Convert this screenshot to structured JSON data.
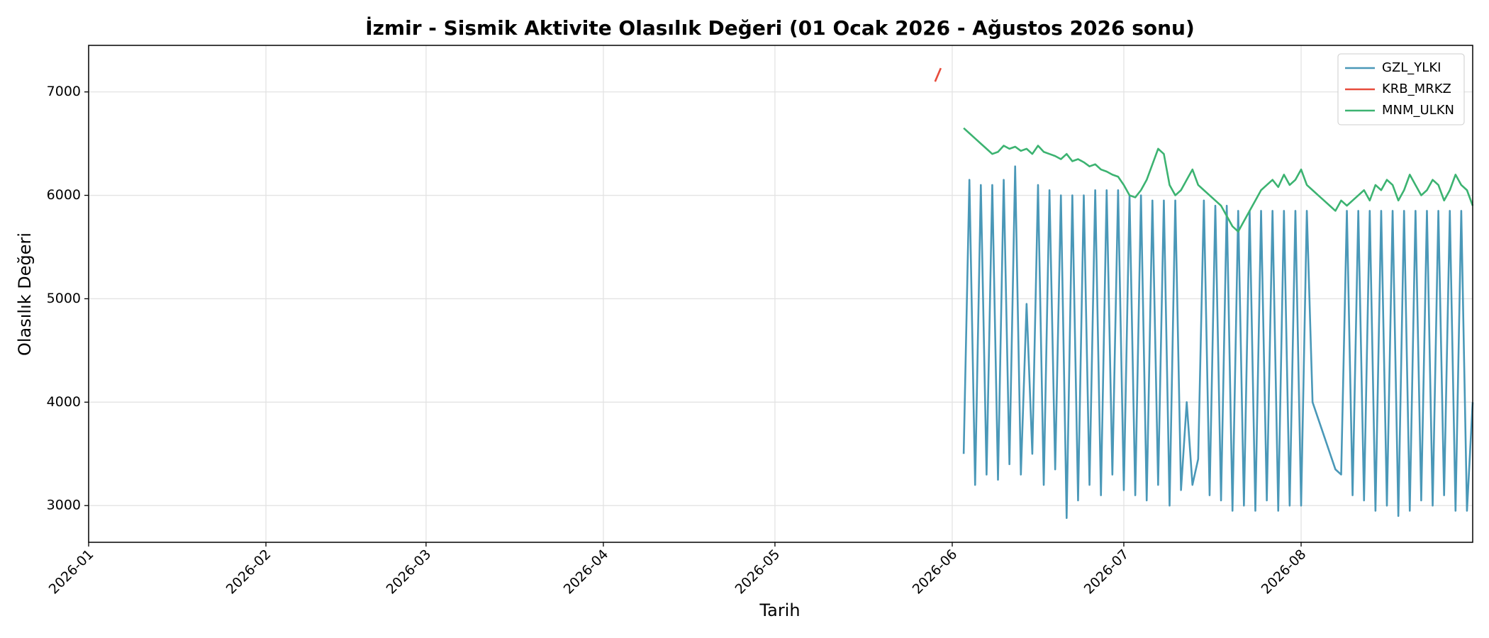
{
  "chart_data": {
    "type": "line",
    "title": "İzmir - Sismik Aktivite Olasılık Değeri (01 Ocak 2026 - Ağustos 2026 sonu)",
    "x_label": "Tarih",
    "y_label": "Olasılık Değeri",
    "xlim": [
      "2026-01-01",
      "2026-08-31"
    ],
    "xticks": [
      {
        "value": "2026-01-01",
        "label": "2026-01"
      },
      {
        "value": "2026-02-01",
        "label": "2026-02"
      },
      {
        "value": "2026-03-01",
        "label": "2026-03"
      },
      {
        "value": "2026-04-01",
        "label": "2026-04"
      },
      {
        "value": "2026-05-01",
        "label": "2026-05"
      },
      {
        "value": "2026-06-01",
        "label": "2026-06"
      },
      {
        "value": "2026-07-01",
        "label": "2026-07"
      },
      {
        "value": "2026-08-01",
        "label": "2026-08"
      }
    ],
    "ylim": [
      2645,
      7450
    ],
    "yticks": [
      3000,
      4000,
      5000,
      6000,
      7000
    ],
    "grid": true,
    "legend": "upper right",
    "series": [
      {
        "name": "GZL_YLKI",
        "color": "#4a98b8",
        "x": [
          "2026-06-03",
          "2026-06-04",
          "2026-06-05",
          "2026-06-06",
          "2026-06-07",
          "2026-06-08",
          "2026-06-09",
          "2026-06-10",
          "2026-06-11",
          "2026-06-12",
          "2026-06-13",
          "2026-06-14",
          "2026-06-15",
          "2026-06-16",
          "2026-06-17",
          "2026-06-18",
          "2026-06-19",
          "2026-06-20",
          "2026-06-21",
          "2026-06-22",
          "2026-06-23",
          "2026-06-24",
          "2026-06-25",
          "2026-06-26",
          "2026-06-27",
          "2026-06-28",
          "2026-06-29",
          "2026-06-30",
          "2026-07-01",
          "2026-07-02",
          "2026-07-03",
          "2026-07-04",
          "2026-07-05",
          "2026-07-06",
          "2026-07-07",
          "2026-07-08",
          "2026-07-09",
          "2026-07-10",
          "2026-07-11",
          "2026-07-12",
          "2026-07-13",
          "2026-07-14",
          "2026-07-15",
          "2026-07-16",
          "2026-07-17",
          "2026-07-18",
          "2026-07-19",
          "2026-07-20",
          "2026-07-21",
          "2026-07-22",
          "2026-07-23",
          "2026-07-24",
          "2026-07-25",
          "2026-07-26",
          "2026-07-27",
          "2026-07-28",
          "2026-07-29",
          "2026-07-30",
          "2026-07-31",
          "2026-08-01",
          "2026-08-02",
          "2026-08-03",
          "2026-08-07",
          "2026-08-08",
          "2026-08-09",
          "2026-08-10",
          "2026-08-11",
          "2026-08-12",
          "2026-08-13",
          "2026-08-14",
          "2026-08-15",
          "2026-08-16",
          "2026-08-17",
          "2026-08-18",
          "2026-08-19",
          "2026-08-20",
          "2026-08-21",
          "2026-08-22",
          "2026-08-23",
          "2026-08-24",
          "2026-08-25",
          "2026-08-26",
          "2026-08-27",
          "2026-08-28",
          "2026-08-29",
          "2026-08-30",
          "2026-08-31"
        ],
        "values": [
          3500,
          6150,
          3200,
          6100,
          3300,
          6100,
          3250,
          6150,
          3400,
          6280,
          3300,
          4950,
          3500,
          6100,
          3200,
          6050,
          3350,
          6000,
          2880,
          6000,
          3050,
          6000,
          3200,
          6050,
          3100,
          6050,
          3300,
          6050,
          3150,
          6000,
          3100,
          6000,
          3050,
          5950,
          3200,
          5950,
          3000,
          5950,
          3150,
          4000,
          3200,
          3450,
          5950,
          3100,
          5900,
          3050,
          5900,
          2950,
          5850,
          3000,
          5850,
          2950,
          5850,
          3050,
          5850,
          2950,
          5850,
          3000,
          5850,
          3000,
          5850,
          4000,
          3350,
          3300,
          5850,
          3100,
          5850,
          3050,
          5850,
          2950,
          5850,
          3000,
          5850,
          2900,
          5850,
          2950,
          5850,
          3050,
          5850,
          3000,
          5850,
          3100,
          5850,
          2950,
          5850,
          2950,
          4000
        ]
      },
      {
        "name": "KRB_MRKZ",
        "color": "#e74c3c",
        "x": [
          "2026-05-29",
          "2026-05-30"
        ],
        "values": [
          7100,
          7230
        ]
      },
      {
        "name": "MNM_ULKN",
        "color": "#3cb371",
        "x": [
          "2026-06-03",
          "2026-06-04",
          "2026-06-05",
          "2026-06-06",
          "2026-06-07",
          "2026-06-08",
          "2026-06-09",
          "2026-06-10",
          "2026-06-11",
          "2026-06-12",
          "2026-06-13",
          "2026-06-14",
          "2026-06-15",
          "2026-06-16",
          "2026-06-17",
          "2026-06-18",
          "2026-06-19",
          "2026-06-20",
          "2026-06-21",
          "2026-06-22",
          "2026-06-23",
          "2026-06-24",
          "2026-06-25",
          "2026-06-26",
          "2026-06-27",
          "2026-06-28",
          "2026-06-29",
          "2026-06-30",
          "2026-07-01",
          "2026-07-02",
          "2026-07-03",
          "2026-07-04",
          "2026-07-05",
          "2026-07-06",
          "2026-07-07",
          "2026-07-08",
          "2026-07-09",
          "2026-07-10",
          "2026-07-11",
          "2026-07-12",
          "2026-07-13",
          "2026-07-14",
          "2026-07-15",
          "2026-07-16",
          "2026-07-17",
          "2026-07-18",
          "2026-07-19",
          "2026-07-20",
          "2026-07-21",
          "2026-07-22",
          "2026-07-23",
          "2026-07-24",
          "2026-07-25",
          "2026-07-26",
          "2026-07-27",
          "2026-07-28",
          "2026-07-29",
          "2026-07-30",
          "2026-07-31",
          "2026-08-01",
          "2026-08-02",
          "2026-08-03",
          "2026-08-04",
          "2026-08-05",
          "2026-08-06",
          "2026-08-07",
          "2026-08-08",
          "2026-08-09",
          "2026-08-10",
          "2026-08-11",
          "2026-08-12",
          "2026-08-13",
          "2026-08-14",
          "2026-08-15",
          "2026-08-16",
          "2026-08-17",
          "2026-08-18",
          "2026-08-19",
          "2026-08-20",
          "2026-08-21",
          "2026-08-22",
          "2026-08-23",
          "2026-08-24",
          "2026-08-25",
          "2026-08-26",
          "2026-08-27",
          "2026-08-28",
          "2026-08-29",
          "2026-08-30",
          "2026-08-31"
        ],
        "values": [
          6650,
          6600,
          6550,
          6500,
          6450,
          6400,
          6420,
          6480,
          6450,
          6470,
          6430,
          6450,
          6400,
          6480,
          6420,
          6400,
          6380,
          6350,
          6400,
          6330,
          6350,
          6320,
          6280,
          6300,
          6250,
          6230,
          6200,
          6180,
          6100,
          6000,
          5980,
          6050,
          6150,
          6300,
          6450,
          6400,
          6100,
          6000,
          6050,
          6150,
          6250,
          6100,
          6050,
          6000,
          5950,
          5900,
          5800,
          5700,
          5650,
          5750,
          5850,
          5950,
          6050,
          6100,
          6150,
          6080,
          6200,
          6100,
          6150,
          6250,
          6100,
          6050,
          6000,
          5950,
          5900,
          5850,
          5950,
          5900,
          5950,
          6000,
          6050,
          5950,
          6100,
          6050,
          6150,
          6100,
          5950,
          6050,
          6200,
          6100,
          6000,
          6050,
          6150,
          6100,
          5950,
          6050,
          6200,
          6100,
          6050,
          5900
        ]
      }
    ]
  }
}
